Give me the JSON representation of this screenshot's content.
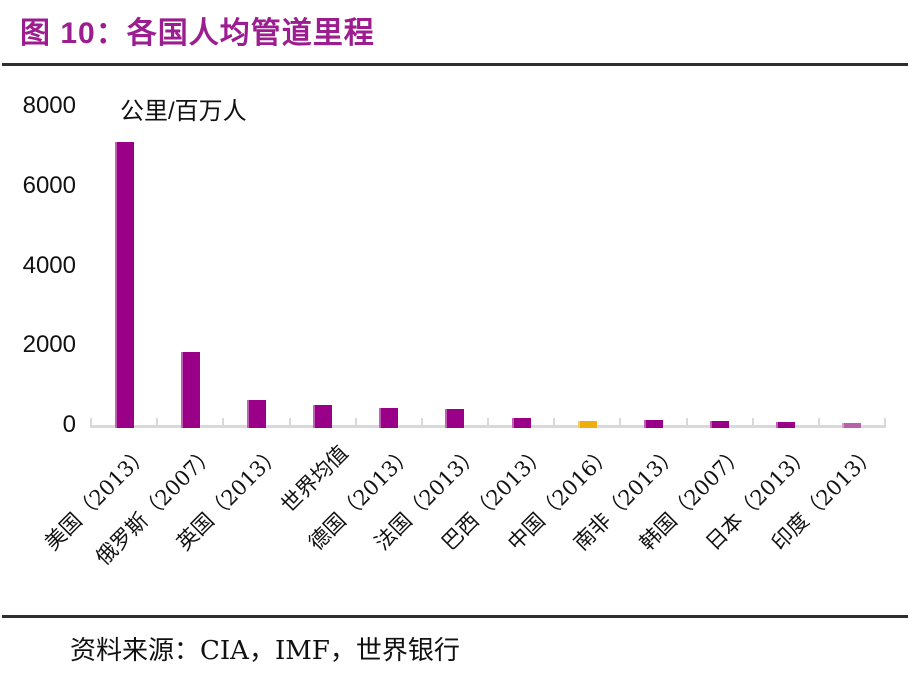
{
  "figure": {
    "title": "图 10：各国人均管道里程",
    "source": "资料来源：CIA，IMF，世界银行"
  },
  "chart_data": {
    "type": "bar",
    "title": "图 10：各国人均管道里程",
    "unit_label": "公里/百万人",
    "source": "资料来源：CIA，IMF，世界银行",
    "categories": [
      "美国（2013）",
      "俄罗斯（2007）",
      "英国（2013）",
      "世界均值",
      "德国（2013）",
      "法国（2013）",
      "巴西（2013）",
      "中国（2016）",
      "南非（2013）",
      "韩国（2007）",
      "日本（2013）",
      "印度（2013）"
    ],
    "values": [
      7100,
      1830,
      620,
      510,
      430,
      390,
      170,
      90,
      125,
      100,
      70,
      50
    ],
    "bar_colors": [
      "#990087",
      "#990087",
      "#990087",
      "#990087",
      "#990087",
      "#990087",
      "#990087",
      "#EFAE0C",
      "#990087",
      "#990087",
      "#990087",
      "#B763A9"
    ],
    "xlabel": "",
    "ylabel": "公里/百万人",
    "ylim": [
      0,
      8000
    ],
    "yticks": [
      0,
      2000,
      4000,
      6000,
      8000
    ],
    "grid": "off",
    "legend": "none",
    "colors": {
      "default_bar": "#990087",
      "highlight_bar": "#EFAE0C",
      "light_bar": "#B763A9",
      "title_text": "#9C1D8F",
      "axis_line": "#D9D9D9",
      "rule_line": "#2F2F2F",
      "text": "#111111"
    }
  }
}
